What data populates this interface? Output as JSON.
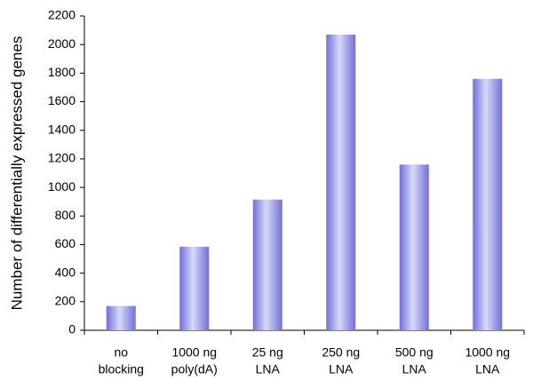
{
  "chart_data": {
    "type": "bar",
    "y_label": "Number of differentially expressed genes",
    "categories": [
      [
        "no",
        "blocking"
      ],
      [
        "1000 ng",
        "poly(dA)"
      ],
      [
        "25 ng",
        "LNA"
      ],
      [
        "250 ng",
        "LNA"
      ],
      [
        "500 ng",
        "LNA"
      ],
      [
        "1000 ng",
        "LNA"
      ]
    ],
    "values": [
      170,
      585,
      915,
      2070,
      1160,
      1760
    ],
    "color": "#7070d8",
    "ylim": [
      0,
      2200
    ],
    "yticks": [
      0,
      200,
      400,
      600,
      800,
      1000,
      1200,
      1400,
      1600,
      1800,
      2000,
      2200
    ],
    "grid": false
  }
}
